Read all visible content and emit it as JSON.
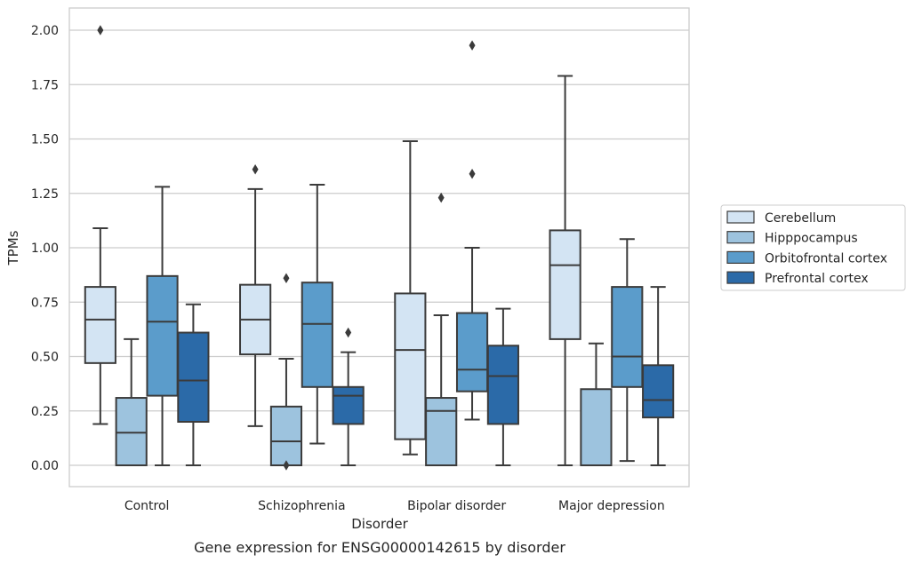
{
  "chart_data": {
    "type": "box",
    "caption": "Gene expression for ENSG00000142615 by disorder",
    "xlabel": "Disorder",
    "ylabel": "TPMs",
    "ylim": [
      -0.1,
      2.1
    ],
    "yticks": [
      0.0,
      0.25,
      0.5,
      0.75,
      1.0,
      1.25,
      1.5,
      1.75,
      2.0
    ],
    "ytick_labels": [
      "0.00",
      "0.25",
      "0.50",
      "0.75",
      "1.00",
      "1.25",
      "1.50",
      "1.75",
      "2.00"
    ],
    "grid": "horizontal",
    "legend_position": "right",
    "categories": [
      "Control",
      "Schizophrenia",
      "Bipolar disorder",
      "Major depression"
    ],
    "series": [
      {
        "name": "Cerebellum",
        "color": "#d3e4f3",
        "boxes": [
          {
            "whislo": 0.19,
            "q1": 0.47,
            "med": 0.67,
            "q3": 0.82,
            "whishi": 1.09,
            "fliers": [
              2.0
            ]
          },
          {
            "whislo": 0.18,
            "q1": 0.51,
            "med": 0.67,
            "q3": 0.83,
            "whishi": 1.27,
            "fliers": [
              1.36
            ]
          },
          {
            "whislo": 0.05,
            "q1": 0.12,
            "med": 0.53,
            "q3": 0.79,
            "whishi": 1.49,
            "fliers": []
          },
          {
            "whislo": 0.0,
            "q1": 0.58,
            "med": 0.92,
            "q3": 1.08,
            "whishi": 1.79,
            "fliers": []
          }
        ]
      },
      {
        "name": "Hipppocampus",
        "color": "#9dc3de",
        "boxes": [
          {
            "whislo": 0.0,
            "q1": 0.0,
            "med": 0.15,
            "q3": 0.31,
            "whishi": 0.58,
            "fliers": []
          },
          {
            "whislo": 0.0,
            "q1": 0.0,
            "med": 0.11,
            "q3": 0.27,
            "whishi": 0.49,
            "fliers": [
              0.0,
              0.86
            ]
          },
          {
            "whislo": 0.0,
            "q1": 0.0,
            "med": 0.25,
            "q3": 0.31,
            "whishi": 0.69,
            "fliers": [
              1.23
            ]
          },
          {
            "whislo": 0.0,
            "q1": 0.0,
            "med": 0.0,
            "q3": 0.35,
            "whishi": 0.56,
            "fliers": []
          }
        ]
      },
      {
        "name": "Orbitofrontal cortex",
        "color": "#5b9ccb",
        "boxes": [
          {
            "whislo": 0.0,
            "q1": 0.32,
            "med": 0.66,
            "q3": 0.87,
            "whishi": 1.28,
            "fliers": []
          },
          {
            "whislo": 0.1,
            "q1": 0.36,
            "med": 0.65,
            "q3": 0.84,
            "whishi": 1.29,
            "fliers": []
          },
          {
            "whislo": 0.21,
            "q1": 0.34,
            "med": 0.44,
            "q3": 0.7,
            "whishi": 1.0,
            "fliers": [
              1.34,
              1.93
            ]
          },
          {
            "whislo": 0.02,
            "q1": 0.36,
            "med": 0.5,
            "q3": 0.82,
            "whishi": 1.04,
            "fliers": []
          }
        ]
      },
      {
        "name": "Prefrontal cortex",
        "color": "#2b6aa8",
        "boxes": [
          {
            "whislo": 0.0,
            "q1": 0.2,
            "med": 0.39,
            "q3": 0.61,
            "whishi": 0.74,
            "fliers": []
          },
          {
            "whislo": 0.0,
            "q1": 0.19,
            "med": 0.32,
            "q3": 0.36,
            "whishi": 0.52,
            "fliers": [
              0.61
            ]
          },
          {
            "whislo": 0.0,
            "q1": 0.19,
            "med": 0.41,
            "q3": 0.55,
            "whishi": 0.72,
            "fliers": []
          },
          {
            "whislo": 0.0,
            "q1": 0.22,
            "med": 0.3,
            "q3": 0.46,
            "whishi": 0.82,
            "fliers": []
          }
        ]
      }
    ]
  }
}
